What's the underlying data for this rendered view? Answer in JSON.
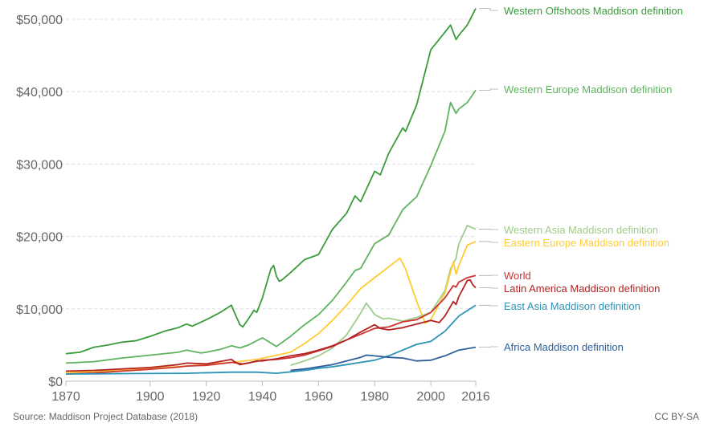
{
  "chart_data": {
    "type": "line",
    "xlim": [
      1870,
      2016
    ],
    "ylim": [
      0,
      50000
    ],
    "x_ticks": [
      "1870",
      "1900",
      "1920",
      "1940",
      "1960",
      "1980",
      "2000",
      "2016"
    ],
    "x_tick_values": [
      1870,
      1900,
      1920,
      1940,
      1960,
      1980,
      2000,
      2016
    ],
    "y_ticks": [
      "$0",
      "$10,000",
      "$20,000",
      "$30,000",
      "$40,000",
      "$50,000"
    ],
    "y_tick_values": [
      0,
      10000,
      20000,
      30000,
      40000,
      50000
    ],
    "grid": "horizontal dashed",
    "legend": "line end labels on right",
    "source": "Source: Maddison Project Database (2018)",
    "license": "CC BY-SA",
    "series": [
      {
        "name": "Western Offshoots Maddison definition",
        "color": "#3a9b3a",
        "x": [
          1870,
          1875,
          1880,
          1885,
          1890,
          1895,
          1900,
          1905,
          1910,
          1913,
          1915,
          1920,
          1925,
          1929,
          1930,
          1932,
          1933,
          1935,
          1937,
          1938,
          1940,
          1943,
          1944,
          1945,
          1946,
          1947,
          1950,
          1955,
          1960,
          1965,
          1970,
          1973,
          1975,
          1980,
          1982,
          1985,
          1990,
          1991,
          1995,
          2000,
          2005,
          2007,
          2009,
          2010,
          2013,
          2016
        ],
        "y": [
          3800,
          4000,
          4700,
          5000,
          5400,
          5600,
          6200,
          6900,
          7400,
          7900,
          7600,
          8500,
          9500,
          10500,
          9500,
          7800,
          7500,
          8600,
          9800,
          9500,
          11500,
          15500,
          16000,
          14500,
          13800,
          14000,
          15000,
          16800,
          17500,
          21000,
          23200,
          25600,
          24800,
          29000,
          28500,
          31500,
          35000,
          34500,
          38200,
          45800,
          48200,
          49200,
          47200,
          47800,
          49200,
          51500
        ]
      },
      {
        "name": "Western Europe Maddison definition",
        "color": "#5fb35f",
        "x": [
          1870,
          1880,
          1890,
          1900,
          1910,
          1913,
          1918,
          1920,
          1925,
          1929,
          1932,
          1935,
          1938,
          1940,
          1945,
          1950,
          1955,
          1960,
          1965,
          1970,
          1973,
          1975,
          1980,
          1985,
          1990,
          1995,
          2000,
          2005,
          2007,
          2009,
          2010,
          2013,
          2016
        ],
        "y": [
          2500,
          2700,
          3200,
          3600,
          4000,
          4300,
          3900,
          4000,
          4400,
          4900,
          4600,
          5000,
          5600,
          6000,
          4800,
          6200,
          7800,
          9200,
          11200,
          13700,
          15300,
          15600,
          19000,
          20200,
          23700,
          25500,
          29800,
          34500,
          38500,
          37000,
          37600,
          38500,
          40200
        ]
      },
      {
        "name": "Western Asia Maddison definition",
        "color": "#9fcc8a",
        "x": [
          1950,
          1955,
          1960,
          1965,
          1970,
          1975,
          1977,
          1980,
          1983,
          1985,
          1990,
          1995,
          2000,
          2005,
          2007,
          2009,
          2010,
          2013,
          2016
        ],
        "y": [
          2200,
          2800,
          3500,
          4600,
          6400,
          9400,
          10800,
          9200,
          8600,
          8700,
          8300,
          8800,
          9500,
          12500,
          15500,
          17000,
          19000,
          21500,
          21000
        ]
      },
      {
        "name": "Eastern Europe Maddison definition",
        "color": "#ffcc33",
        "x": [
          1870,
          1890,
          1913,
          1929,
          1938,
          1950,
          1955,
          1960,
          1965,
          1970,
          1975,
          1980,
          1985,
          1989,
          1991,
          1995,
          1998,
          2000,
          2005,
          2008,
          2009,
          2010,
          2013,
          2016
        ],
        "y": [
          1200,
          1500,
          2100,
          2600,
          3000,
          4000,
          5200,
          6600,
          8400,
          10500,
          12800,
          14300,
          15800,
          17000,
          15500,
          11000,
          8000,
          8500,
          12200,
          16500,
          14800,
          16000,
          18800,
          19300
        ]
      },
      {
        "name": "World",
        "color": "#cc3333",
        "x": [
          1870,
          1880,
          1890,
          1900,
          1910,
          1913,
          1920,
          1929,
          1933,
          1938,
          1940,
          1945,
          1950,
          1955,
          1960,
          1965,
          1970,
          1975,
          1980,
          1985,
          1990,
          1995,
          2000,
          2005,
          2008,
          2009,
          2010,
          2013,
          2016
        ],
        "y": [
          1000,
          1150,
          1400,
          1650,
          1950,
          2100,
          2200,
          2600,
          2400,
          2750,
          2900,
          3000,
          3250,
          3600,
          4200,
          4800,
          5700,
          6500,
          7300,
          7500,
          8200,
          8500,
          9500,
          11500,
          13200,
          13000,
          13700,
          14300,
          14600
        ]
      },
      {
        "name": "Latin America Maddison definition",
        "color": "#b22222",
        "x": [
          1870,
          1880,
          1890,
          1900,
          1910,
          1913,
          1920,
          1929,
          1930,
          1932,
          1935,
          1938,
          1940,
          1945,
          1950,
          1955,
          1960,
          1965,
          1970,
          1975,
          1980,
          1982,
          1985,
          1990,
          1995,
          2000,
          2003,
          2005,
          2008,
          2009,
          2010,
          2013,
          2014,
          2015,
          2016
        ],
        "y": [
          1400,
          1500,
          1700,
          1900,
          2300,
          2500,
          2400,
          3000,
          2700,
          2300,
          2500,
          2800,
          2800,
          3100,
          3500,
          3800,
          4300,
          4900,
          5700,
          6800,
          7800,
          7300,
          7100,
          7400,
          7900,
          8400,
          8100,
          9000,
          11000,
          10600,
          11700,
          13900,
          14000,
          13300,
          12900
        ]
      },
      {
        "name": "East Asia Maddison definition",
        "color": "#2b93b5",
        "x": [
          1870,
          1890,
          1913,
          1929,
          1938,
          1945,
          1950,
          1955,
          1960,
          1965,
          1970,
          1975,
          1980,
          1985,
          1990,
          1995,
          2000,
          2005,
          2010,
          2016
        ],
        "y": [
          1000,
          1050,
          1100,
          1250,
          1250,
          1100,
          1300,
          1500,
          1800,
          2000,
          2300,
          2600,
          2900,
          3500,
          4300,
          5100,
          5500,
          6900,
          9000,
          10500
        ]
      },
      {
        "name": "Africa Maddison definition",
        "color": "#2f5f99",
        "x": [
          1950,
          1955,
          1960,
          1965,
          1970,
          1975,
          1977,
          1980,
          1985,
          1990,
          1995,
          2000,
          2005,
          2010,
          2016
        ],
        "y": [
          1500,
          1700,
          2000,
          2300,
          2800,
          3300,
          3600,
          3500,
          3300,
          3200,
          2800,
          2900,
          3500,
          4300,
          4700
        ]
      }
    ]
  }
}
